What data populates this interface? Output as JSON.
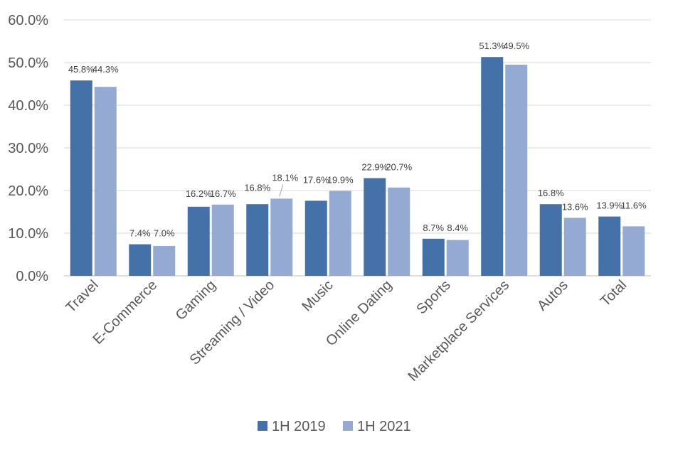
{
  "chart_data": {
    "type": "bar",
    "title": "",
    "xlabel": "",
    "ylabel": "",
    "categories": [
      "Travel",
      "E-Commerce",
      "Gaming",
      "Streaming / Video",
      "Music",
      "Online Dating",
      "Sports",
      "Marketplace Services",
      "Autos",
      "Total"
    ],
    "series": [
      {
        "name": "1H 2019",
        "color": "#4472A8",
        "values": [
          45.8,
          7.4,
          16.2,
          16.8,
          17.6,
          22.9,
          8.7,
          51.3,
          16.8,
          13.9
        ],
        "labels": [
          "45.8%",
          "7.4%",
          "16.2%",
          "16.8%",
          "17.6%",
          "22.9%",
          "8.7%",
          "51.3%",
          "16.8%",
          "13.9%"
        ]
      },
      {
        "name": "1H 2021",
        "color": "#95AAD3",
        "values": [
          44.3,
          7.0,
          16.7,
          18.1,
          19.9,
          20.7,
          8.4,
          49.5,
          13.6,
          11.6
        ],
        "labels": [
          "44.3%",
          "7.0%",
          "16.7%",
          "18.1%",
          "19.9%",
          "20.7%",
          "8.4%",
          "49.5%",
          "13.6%",
          "11.6%"
        ]
      }
    ],
    "ylim": [
      0,
      60
    ],
    "yticks": [
      0,
      10,
      20,
      30,
      40,
      50,
      60
    ],
    "ytick_labels": [
      "0.0%",
      "10.0%",
      "20.0%",
      "30.0%",
      "40.0%",
      "50.0%",
      "60.0%"
    ],
    "grid": true,
    "legend_position": "bottom-center"
  }
}
